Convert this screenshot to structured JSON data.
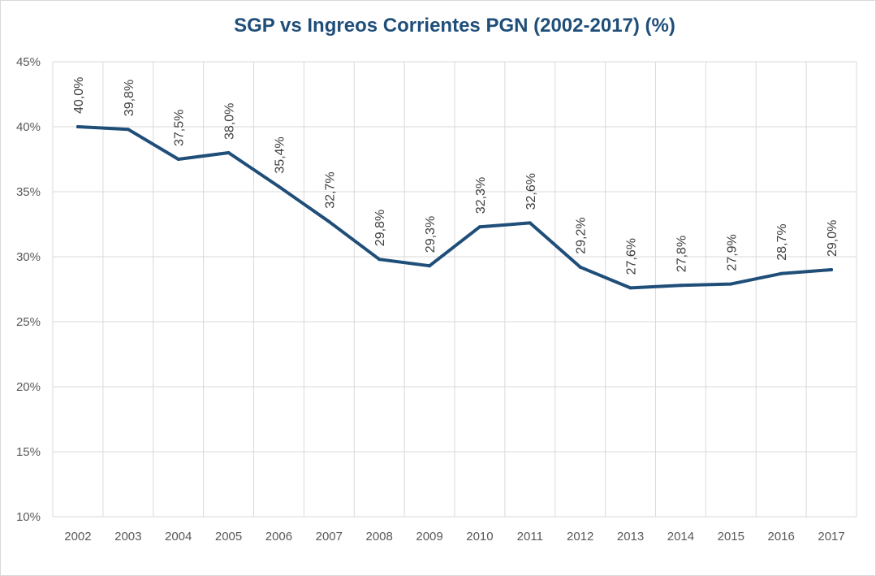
{
  "chart_data": {
    "type": "line",
    "title": "SGP vs Ingreos Corrientes PGN (2002-2017) (%)",
    "xlabel": "",
    "ylabel": "",
    "categories": [
      "2002",
      "2003",
      "2004",
      "2005",
      "2006",
      "2007",
      "2008",
      "2009",
      "2010",
      "2011",
      "2012",
      "2013",
      "2014",
      "2015",
      "2016",
      "2017"
    ],
    "series": [
      {
        "values": [
          40.0,
          39.8,
          37.5,
          38.0,
          35.4,
          32.7,
          29.8,
          29.3,
          32.3,
          32.6,
          29.2,
          27.6,
          27.8,
          27.9,
          28.7,
          29.0
        ],
        "labels": [
          "40,0%",
          "39,8%",
          "37,5%",
          "38,0%",
          "35,4%",
          "32,7%",
          "29,8%",
          "29,3%",
          "32,3%",
          "32,6%",
          "29,2%",
          "27,6%",
          "27,8%",
          "27,9%",
          "28,7%",
          "29,0%"
        ],
        "color": "#1f4e79"
      }
    ],
    "ylim": [
      10,
      45
    ],
    "yticks": [
      10,
      15,
      20,
      25,
      30,
      35,
      40,
      45
    ],
    "ytick_labels": [
      "10%",
      "15%",
      "20%",
      "25%",
      "30%",
      "35%",
      "40%",
      "45%"
    ],
    "grid": true,
    "legend": "none",
    "colors": {
      "line": "#1f4e79",
      "grid": "#d9d9d9",
      "title": "#1f4e79",
      "text": "#595959"
    }
  }
}
